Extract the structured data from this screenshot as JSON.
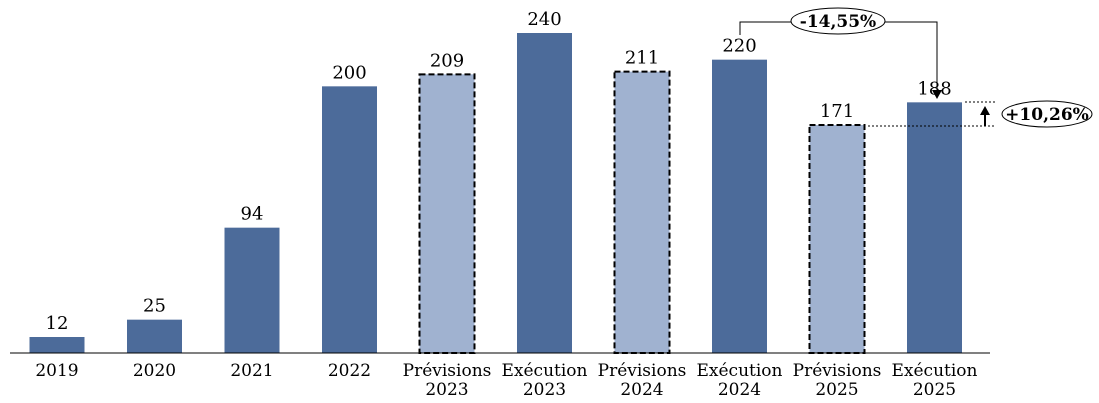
{
  "chart_data": {
    "type": "bar",
    "categories": [
      [
        "2019"
      ],
      [
        "2020"
      ],
      [
        "2021"
      ],
      [
        "2022"
      ],
      [
        "Prévisions",
        "2023"
      ],
      [
        "Exécution",
        "2023"
      ],
      [
        "Prévisions",
        "2024"
      ],
      [
        "Exécution",
        "2024"
      ],
      [
        "Prévisions",
        "2025"
      ],
      [
        "Exécution",
        "2025"
      ]
    ],
    "values": [
      12,
      25,
      94,
      200,
      209,
      240,
      211,
      220,
      171,
      188
    ],
    "bar_kinds": [
      "actual",
      "actual",
      "actual",
      "actual",
      "forecast",
      "actual",
      "forecast",
      "actual",
      "forecast",
      "actual"
    ],
    "ylim": [
      0,
      240
    ],
    "grid": false,
    "annotations": {
      "change_exec_2024_to_2025": "-14,55%",
      "change_forecast_to_exec_2025": "+10,26%"
    }
  },
  "colors": {
    "actual": "#4c6b9a",
    "forecast": "#a0b2d0",
    "axis": "#000000"
  }
}
